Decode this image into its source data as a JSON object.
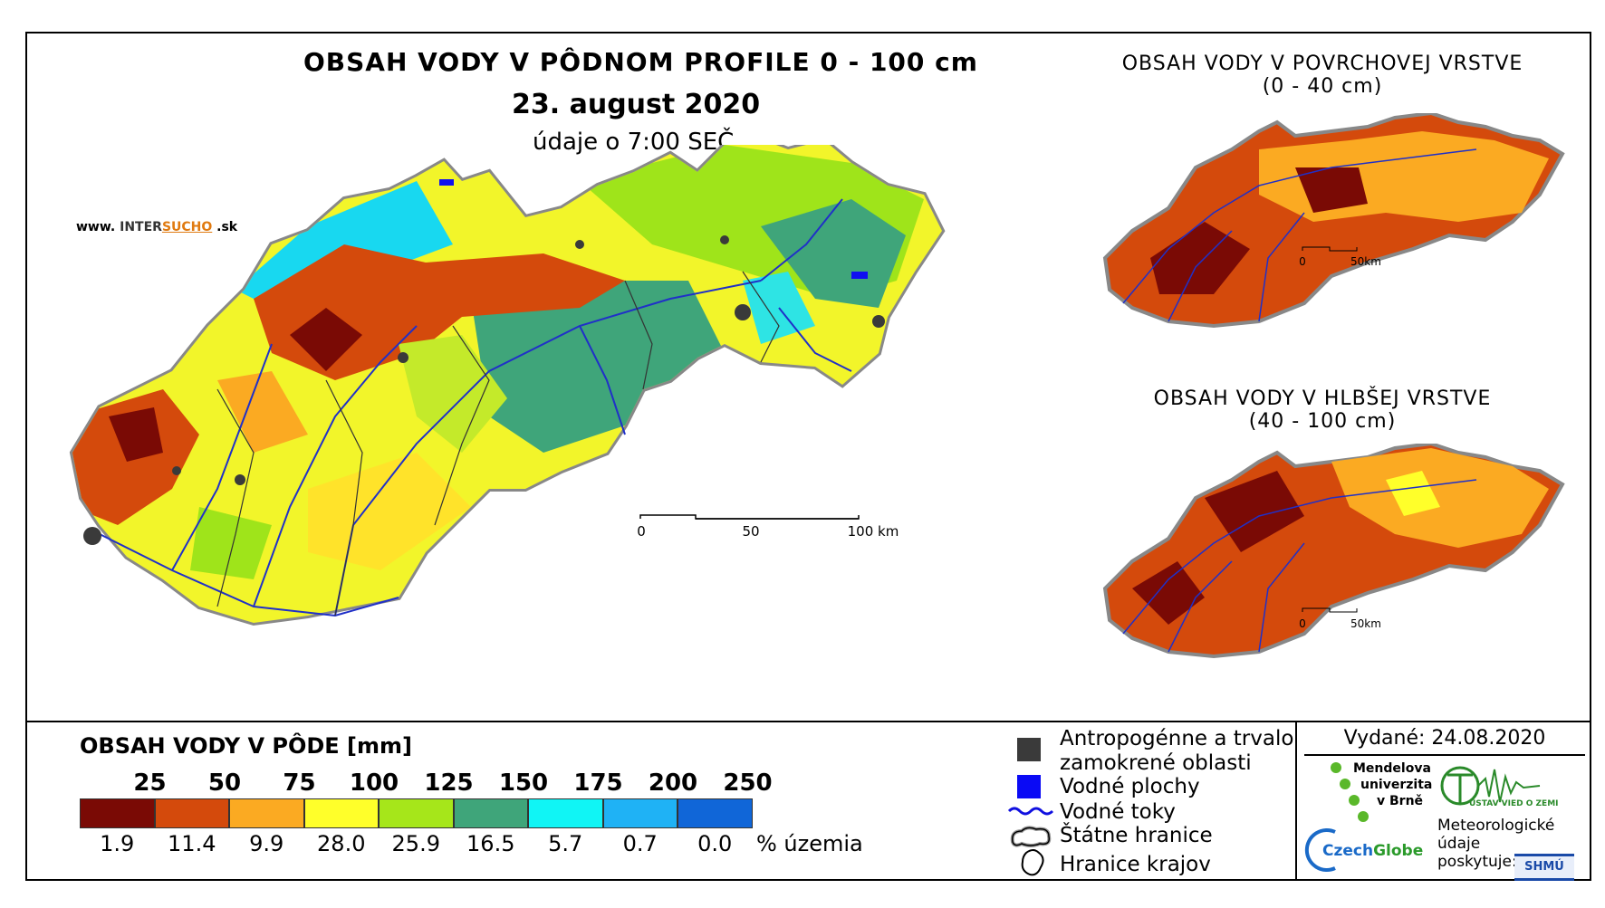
{
  "main": {
    "title": "OBSAH VODY V PÔDNOM PROFILE 0 - 100 cm",
    "date": "23. august 2020",
    "time_note": "údaje o 7:00 SEČ",
    "website_prefix": "www.",
    "website_brand": "INTER",
    "website_brand2": "SUCHO",
    "website_suffix": ".sk",
    "scale": {
      "tick0": "0",
      "tick1": "50",
      "tick2": "100 km"
    }
  },
  "surface_map": {
    "title_line1": "OBSAH VODY V POVRCHOVEJ VRSTVE",
    "title_line2": "(0 - 40 cm)",
    "scale": {
      "tick0": "0",
      "tick1": "50km"
    }
  },
  "deep_map": {
    "title_line1": "OBSAH VODY V HLBŠEJ VRSTVE",
    "title_line2": "(40 - 100 cm)",
    "scale": {
      "tick0": "0",
      "tick1": "50km"
    }
  },
  "legend": {
    "title": "OBSAH VODY V PÔDE [mm]",
    "thresholds": [
      "25",
      "50",
      "75",
      "100",
      "125",
      "150",
      "175",
      "200",
      "250"
    ],
    "colors": [
      "#7a0a05",
      "#d44a0c",
      "#fbaa22",
      "#ffff2a",
      "#a6e61a",
      "#3fa57a",
      "#10f5f5",
      "#1fb2f5",
      "#1066d8"
    ],
    "percentages": [
      "1.9",
      "11.4",
      "9.9",
      "28.0",
      "25.9",
      "16.5",
      "5.7",
      "0.7",
      "0.0"
    ],
    "pct_label": "% územia"
  },
  "symbols": {
    "anthropogenic_line1": "Antropogénne a trvalo",
    "anthropogenic_line2": "zamokrené oblasti",
    "water_areas": "Vodné plochy",
    "water_streams": "Vodné toky",
    "state_border": "Štátne hranice",
    "region_border": "Hranice krajov"
  },
  "credits": {
    "issued": "Vydané: 24.08.2020",
    "mendel_line1": "Mendelova",
    "mendel_line2": "univerzita",
    "mendel_line3": "v Brně",
    "czechglobe_a": "Czech",
    "czechglobe_b": "Globe",
    "earth_institute": "ÚSTAV VIED O ZEMI",
    "meteo_line1": "Meteorologické",
    "meteo_line2": "údaje",
    "meteo_line3": "poskytuje:",
    "shmu": "SHMÚ"
  }
}
